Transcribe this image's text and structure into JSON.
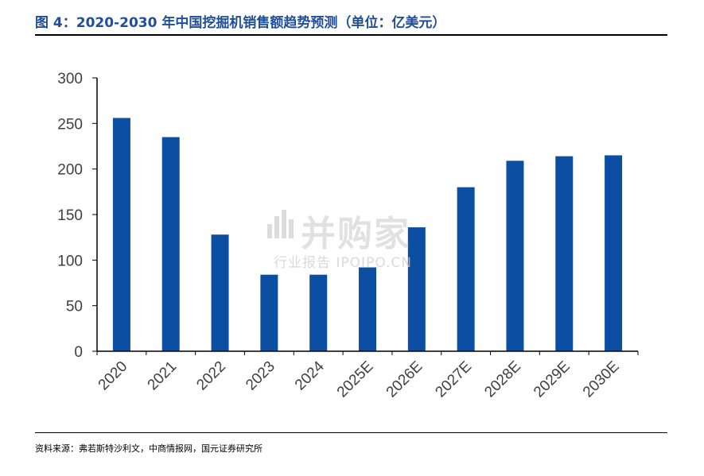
{
  "header": {
    "title": "图 4：2020-2030 年中国挖掘机销售额趋势预测（单位：亿美元）"
  },
  "footer": {
    "source": "资料来源：弗若斯特沙利文，中商情报网，国元证券研究所"
  },
  "watermark": {
    "main": "并购家",
    "sub": "行业报告 IPOIPO.CN"
  },
  "chart_data": {
    "type": "bar",
    "categories": [
      "2020",
      "2021",
      "2022",
      "2023",
      "2024",
      "2025E",
      "2026E",
      "2027E",
      "2028E",
      "2029E",
      "2030E"
    ],
    "values": [
      256,
      235,
      128,
      84,
      84,
      92,
      136,
      180,
      209,
      214,
      215
    ],
    "ylim": [
      0,
      300
    ],
    "yticks": [
      0,
      50,
      100,
      150,
      200,
      250,
      300
    ],
    "grid": false,
    "legend": "none",
    "bar_color": "#0b4ea2"
  }
}
